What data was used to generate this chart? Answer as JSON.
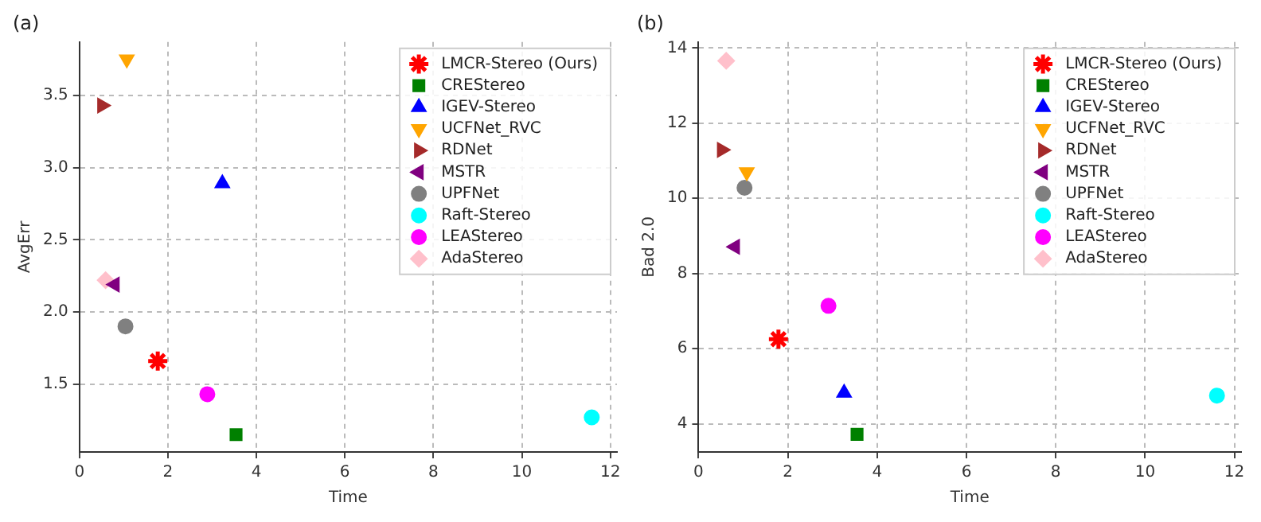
{
  "chart_data": [
    {
      "type": "scatter",
      "title": "(a)",
      "xlabel": "Time",
      "ylabel": "AvgErr",
      "xlim": [
        0,
        12.15
      ],
      "xticks": [
        0,
        2,
        4,
        6,
        8,
        10,
        12
      ],
      "ylim": [
        1.03,
        3.87
      ],
      "yticks": [
        1.5,
        {
          "value": 2,
          "label": "2.0"
        },
        2.5,
        {
          "value": 3,
          "label": "3.0"
        },
        3.5
      ],
      "grid": true,
      "legend": "top right",
      "series": [
        {
          "name": "LMCR-Stereo (Ours)",
          "color": "#ff0000",
          "x": [
            1.77
          ],
          "values": [
            1.66
          ]
        },
        {
          "name": "CREStereo",
          "color": "#008000",
          "marker": "square",
          "x": [
            3.54
          ],
          "values": [
            1.15
          ]
        },
        {
          "name": "IGEV-Stereo",
          "color": "#0000ff",
          "marker": "triangle",
          "x": [
            3.23
          ],
          "values": [
            2.89
          ]
        },
        {
          "name": "UCFNet_RVC",
          "color": "#ffa500",
          "marker": "triangle-down",
          "x": [
            1.07
          ],
          "values": [
            3.75
          ]
        },
        {
          "name": "RDNet",
          "color": "#a52a2a",
          "marker": "triangle-right",
          "x": [
            0.51
          ],
          "values": [
            3.43
          ]
        },
        {
          "name": "MSTR",
          "color": "#800080",
          "marker": "triangle-left",
          "x": [
            0.8
          ],
          "values": [
            2.19
          ]
        },
        {
          "name": "UPFNet",
          "color": "#808080",
          "marker": "circle",
          "x": [
            1.04
          ],
          "values": [
            1.9
          ]
        },
        {
          "name": "Raft-Stereo",
          "color": "#00ffff",
          "marker": "circle",
          "x": [
            11.58
          ],
          "values": [
            1.27
          ]
        },
        {
          "name": "LEAStereo",
          "color": "#ff00ff",
          "marker": "circle",
          "x": [
            2.89
          ],
          "values": [
            1.43
          ]
        },
        {
          "name": "AdaStereo",
          "color": "#ffc0cb",
          "marker": "diamond",
          "x": [
            0.59
          ],
          "values": [
            2.22
          ]
        }
      ]
    },
    {
      "type": "scatter",
      "title": "(b)",
      "xlabel": "Time",
      "ylabel": "Bad 2.0",
      "xlim": [
        0,
        12.15
      ],
      "xticks": [
        0,
        2,
        4,
        6,
        8,
        10,
        12
      ],
      "ylim": [
        3.25,
        14.16
      ],
      "yticks": [
        4,
        6,
        8,
        10,
        12,
        14
      ],
      "grid": true,
      "legend": "top right",
      "series": [
        {
          "name": "LMCR-Stereo (Ours)",
          "color": "#ff0000",
          "x": [
            1.79
          ],
          "values": [
            6.25
          ]
        },
        {
          "name": "CREStereo",
          "color": "#008000",
          "marker": "square",
          "x": [
            3.55
          ],
          "values": [
            3.72
          ]
        },
        {
          "name": "IGEV-Stereo",
          "color": "#0000ff",
          "marker": "triangle",
          "x": [
            3.26
          ],
          "values": [
            4.82
          ]
        },
        {
          "name": "UCFNet_RVC",
          "color": "#ffa500",
          "marker": "triangle-down",
          "x": [
            1.08
          ],
          "values": [
            10.7
          ]
        },
        {
          "name": "RDNet",
          "color": "#a52a2a",
          "marker": "triangle-right",
          "x": [
            0.52
          ],
          "values": [
            11.29
          ]
        },
        {
          "name": "MSTR",
          "color": "#800080",
          "marker": "triangle-left",
          "x": [
            0.82
          ],
          "values": [
            8.71
          ]
        },
        {
          "name": "UPFNet",
          "color": "#808080",
          "marker": "circle",
          "x": [
            1.03
          ],
          "values": [
            10.28
          ]
        },
        {
          "name": "Raft-Stereo",
          "color": "#00ffff",
          "marker": "circle",
          "x": [
            11.61
          ],
          "values": [
            4.75
          ]
        },
        {
          "name": "LEAStereo",
          "color": "#ff00ff",
          "marker": "circle",
          "x": [
            2.91
          ],
          "values": [
            7.14
          ]
        },
        {
          "name": "AdaStereo",
          "color": "#ffc0cb",
          "marker": "diamond",
          "x": [
            0.62
          ],
          "values": [
            13.66
          ]
        }
      ]
    }
  ]
}
